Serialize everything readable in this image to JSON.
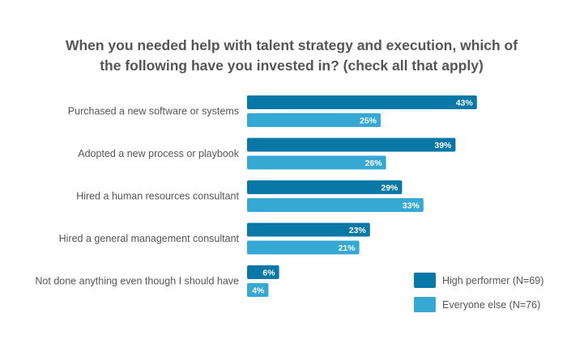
{
  "chart_data": {
    "type": "bar",
    "orientation": "horizontal",
    "title_lines": [
      "When you needed help with talent strategy and execution, which of",
      "the following have you invested in? (check all that apply)"
    ],
    "categories": [
      "Purchased a new software or systems",
      "Adopted a new process or playbook",
      "Hired a human resources consultant",
      "Hired a general management consultant",
      "Not done anything even though I should have"
    ],
    "series": [
      {
        "name": "High performer (N=69)",
        "color": "#0a78a6",
        "values": [
          43,
          39,
          29,
          23,
          6
        ],
        "labels": [
          "43%",
          "39%",
          "29%",
          "23%",
          "6%"
        ]
      },
      {
        "name": "Everyone else (N=76)",
        "color": "#35a8d4",
        "values": [
          25,
          26,
          33,
          21,
          4
        ],
        "labels": [
          "25%",
          "26%",
          "33%",
          "21%",
          "4%"
        ]
      }
    ],
    "xlim": [
      0,
      100
    ],
    "unit": "%",
    "grid": false,
    "legend_position": "bottom-right",
    "data_labels": "inside-end"
  }
}
